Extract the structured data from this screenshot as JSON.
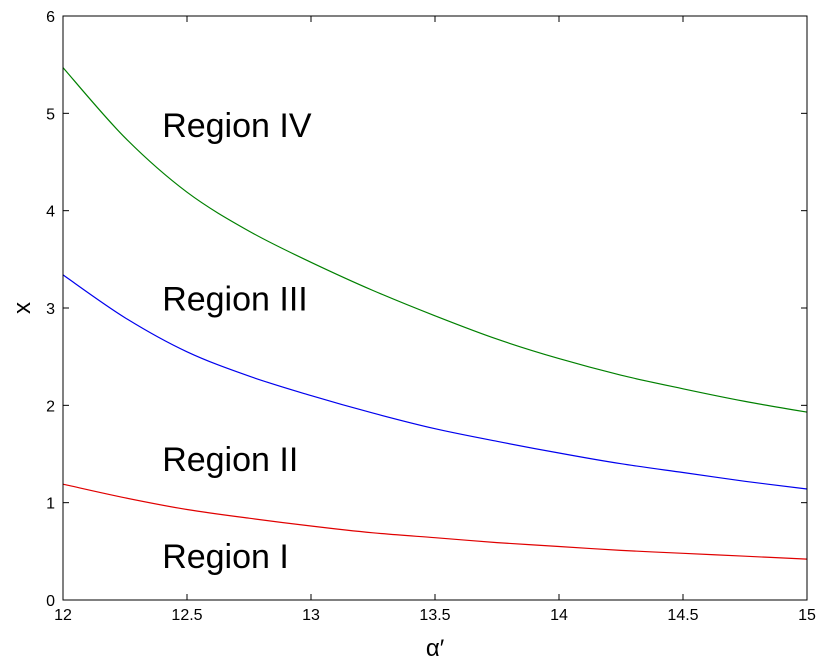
{
  "chart_data": {
    "type": "line",
    "xlabel": "α′",
    "ylabel": "x",
    "xlim": [
      12,
      15
    ],
    "ylim": [
      0,
      6
    ],
    "xticks": [
      12,
      12.5,
      13,
      13.5,
      14,
      14.5,
      15
    ],
    "xtick_labels": [
      "12",
      "12.5",
      "13",
      "13.5",
      "14",
      "14.5",
      "15"
    ],
    "yticks": [
      0,
      1,
      2,
      3,
      4,
      5,
      6
    ],
    "ytick_labels": [
      "0",
      "1",
      "2",
      "3",
      "4",
      "5",
      "6"
    ],
    "grid": false,
    "series": [
      {
        "color": "#e00000",
        "x": [
          12,
          12.25,
          12.5,
          12.75,
          13,
          13.25,
          13.5,
          13.75,
          14,
          14.25,
          14.5,
          14.75,
          15
        ],
        "y": [
          1.19,
          1.05,
          0.93,
          0.84,
          0.76,
          0.69,
          0.64,
          0.59,
          0.55,
          0.51,
          0.48,
          0.45,
          0.42
        ]
      },
      {
        "color": "#0000ee",
        "x": [
          12,
          12.25,
          12.5,
          12.75,
          13,
          13.25,
          13.5,
          13.75,
          14,
          14.25,
          14.5,
          14.75,
          15
        ],
        "y": [
          3.34,
          2.9,
          2.55,
          2.3,
          2.1,
          1.92,
          1.76,
          1.63,
          1.51,
          1.4,
          1.31,
          1.22,
          1.14
        ]
      },
      {
        "color": "#008000",
        "x": [
          12,
          12.25,
          12.5,
          12.75,
          13,
          13.25,
          13.5,
          13.75,
          14,
          14.25,
          14.5,
          14.75,
          15
        ],
        "y": [
          5.47,
          4.75,
          4.19,
          3.79,
          3.47,
          3.18,
          2.92,
          2.68,
          2.48,
          2.31,
          2.17,
          2.04,
          1.93
        ]
      }
    ],
    "annotations": [
      {
        "text": "Region IV",
        "x": 12.4,
        "y": 4.88
      },
      {
        "text": "Region III",
        "x": 12.4,
        "y": 3.1
      },
      {
        "text": "Region II",
        "x": 12.4,
        "y": 1.45
      },
      {
        "text": "Region I",
        "x": 12.4,
        "y": 0.45
      }
    ]
  }
}
